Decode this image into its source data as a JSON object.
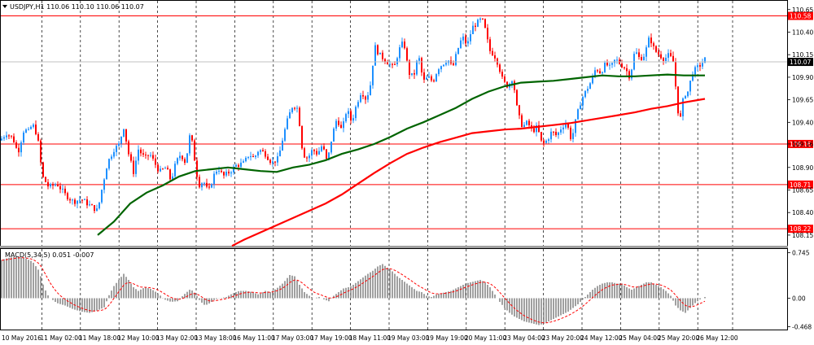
{
  "chart_data": [
    {
      "type": "candlestick",
      "symbol_info": "USDJPY,H1 110.06 110.10 110.06 110.07",
      "y_range": [
        108.05,
        110.72
      ],
      "y_ticks": [
        "110.65",
        "110.40",
        "110.15",
        "109.90",
        "109.65",
        "109.40",
        "109.16",
        "108.90",
        "108.65",
        "108.40",
        "108.15"
      ],
      "horizontal_lines": [
        {
          "label": "110.58",
          "value": 110.58,
          "color": "#ff0000"
        },
        {
          "label": "109.16",
          "value": 109.16,
          "color": "#ff0000"
        },
        {
          "label": "108.71",
          "value": 108.71,
          "color": "#ff0000"
        },
        {
          "label": "108.22",
          "value": 108.22,
          "color": "#ff0000"
        }
      ],
      "current_price": {
        "label": "110.07",
        "value": 110.07
      },
      "bull_color": "#1e90ff",
      "bear_color": "#ff0000",
      "ma_fast_color": "#006400",
      "ma_slow_color": "#ff0000",
      "close_path": [
        [
          0,
          109.2
        ],
        [
          8,
          109.28
        ],
        [
          16,
          109.22
        ],
        [
          22,
          109.06
        ],
        [
          30,
          109.34
        ],
        [
          34,
          109.28
        ],
        [
          40,
          109.38
        ],
        [
          46,
          109.25
        ],
        [
          52,
          108.8
        ],
        [
          60,
          108.68
        ],
        [
          70,
          108.72
        ],
        [
          80,
          108.6
        ],
        [
          90,
          108.52
        ],
        [
          100,
          108.55
        ],
        [
          110,
          108.48
        ],
        [
          120,
          108.42
        ],
        [
          126,
          108.7
        ],
        [
          132,
          108.95
        ],
        [
          140,
          109.1
        ],
        [
          146,
          109.15
        ],
        [
          152,
          109.35
        ],
        [
          158,
          109.05
        ],
        [
          164,
          108.85
        ],
        [
          170,
          109.1
        ],
        [
          178,
          109.0
        ],
        [
          184,
          109.05
        ],
        [
          190,
          108.95
        ],
        [
          196,
          108.85
        ],
        [
          204,
          108.9
        ],
        [
          210,
          108.75
        ],
        [
          216,
          108.95
        ],
        [
          222,
          109.05
        ],
        [
          228,
          108.95
        ],
        [
          234,
          109.3
        ],
        [
          238,
          109.05
        ],
        [
          244,
          108.7
        ],
        [
          250,
          108.75
        ],
        [
          256,
          108.62
        ],
        [
          262,
          108.8
        ],
        [
          268,
          108.9
        ],
        [
          274,
          108.8
        ],
        [
          282,
          108.85
        ],
        [
          290,
          108.92
        ],
        [
          300,
          108.95
        ],
        [
          306,
          109.05
        ],
        [
          312,
          109.0
        ],
        [
          318,
          109.1
        ],
        [
          326,
          109.05
        ],
        [
          334,
          108.95
        ],
        [
          342,
          109.0
        ],
        [
          348,
          109.25
        ],
        [
          354,
          109.45
        ],
        [
          360,
          109.6
        ],
        [
          366,
          109.55
        ],
        [
          372,
          109.05
        ],
        [
          378,
          109.0
        ],
        [
          384,
          109.1
        ],
        [
          390,
          109.05
        ],
        [
          396,
          109.15
        ],
        [
          402,
          108.95
        ],
        [
          408,
          109.25
        ],
        [
          414,
          109.45
        ],
        [
          420,
          109.3
        ],
        [
          426,
          109.55
        ],
        [
          432,
          109.4
        ],
        [
          438,
          109.6
        ],
        [
          444,
          109.75
        ],
        [
          450,
          109.65
        ],
        [
          456,
          109.85
        ],
        [
          460,
          110.25
        ],
        [
          466,
          110.15
        ],
        [
          472,
          110.1
        ],
        [
          478,
          110.05
        ],
        [
          484,
          110.0
        ],
        [
          490,
          110.2
        ],
        [
          496,
          110.3
        ],
        [
          502,
          109.95
        ],
        [
          508,
          109.9
        ],
        [
          514,
          110.15
        ],
        [
          520,
          109.85
        ],
        [
          526,
          109.9
        ],
        [
          532,
          109.85
        ],
        [
          538,
          110.0
        ],
        [
          544,
          110.05
        ],
        [
          550,
          110.1
        ],
        [
          556,
          110.0
        ],
        [
          562,
          110.2
        ],
        [
          568,
          110.35
        ],
        [
          574,
          110.25
        ],
        [
          580,
          110.45
        ],
        [
          586,
          110.5
        ],
        [
          592,
          110.55
        ],
        [
          597,
          110.4
        ],
        [
          601,
          110.2
        ],
        [
          607,
          110.15
        ],
        [
          612,
          110.05
        ],
        [
          618,
          109.85
        ],
        [
          624,
          109.8
        ],
        [
          630,
          109.9
        ],
        [
          636,
          109.5
        ],
        [
          642,
          109.35
        ],
        [
          648,
          109.4
        ],
        [
          654,
          109.3
        ],
        [
          660,
          109.35
        ],
        [
          666,
          109.15
        ],
        [
          672,
          109.2
        ],
        [
          678,
          109.3
        ],
        [
          684,
          109.25
        ],
        [
          690,
          109.35
        ],
        [
          696,
          109.4
        ],
        [
          702,
          109.2
        ],
        [
          708,
          109.45
        ],
        [
          714,
          109.65
        ],
        [
          720,
          109.75
        ],
        [
          726,
          109.85
        ],
        [
          732,
          110.0
        ],
        [
          738,
          109.95
        ],
        [
          744,
          110.05
        ],
        [
          750,
          110.0
        ],
        [
          756,
          110.1
        ],
        [
          762,
          110.05
        ],
        [
          768,
          110.0
        ],
        [
          774,
          109.9
        ],
        [
          780,
          110.2
        ],
        [
          786,
          110.1
        ],
        [
          792,
          110.15
        ],
        [
          798,
          110.35
        ],
        [
          804,
          110.2
        ],
        [
          810,
          110.15
        ],
        [
          816,
          110.1
        ],
        [
          822,
          110.15
        ],
        [
          828,
          110.05
        ],
        [
          832,
          109.55
        ],
        [
          836,
          109.45
        ],
        [
          840,
          109.7
        ],
        [
          846,
          109.75
        ],
        [
          850,
          109.95
        ],
        [
          856,
          110.0
        ],
        [
          862,
          110.05
        ],
        [
          866,
          110.1
        ]
      ],
      "ma_fast": [
        [
          120,
          108.15
        ],
        [
          140,
          108.3
        ],
        [
          160,
          108.5
        ],
        [
          180,
          108.62
        ],
        [
          200,
          108.7
        ],
        [
          220,
          108.8
        ],
        [
          240,
          108.86
        ],
        [
          260,
          108.88
        ],
        [
          280,
          108.9
        ],
        [
          300,
          108.88
        ],
        [
          320,
          108.86
        ],
        [
          340,
          108.85
        ],
        [
          360,
          108.9
        ],
        [
          380,
          108.93
        ],
        [
          400,
          108.98
        ],
        [
          420,
          109.05
        ],
        [
          440,
          109.1
        ],
        [
          460,
          109.16
        ],
        [
          480,
          109.24
        ],
        [
          500,
          109.33
        ],
        [
          520,
          109.4
        ],
        [
          540,
          109.48
        ],
        [
          560,
          109.56
        ],
        [
          580,
          109.66
        ],
        [
          600,
          109.74
        ],
        [
          620,
          109.8
        ],
        [
          640,
          109.84
        ],
        [
          660,
          109.85
        ],
        [
          680,
          109.86
        ],
        [
          700,
          109.88
        ],
        [
          720,
          109.9
        ],
        [
          740,
          109.92
        ],
        [
          760,
          109.91
        ],
        [
          780,
          109.91
        ],
        [
          800,
          109.92
        ],
        [
          820,
          109.93
        ],
        [
          840,
          109.92
        ],
        [
          866,
          109.92
        ]
      ],
      "ma_slow": [
        [
          285,
          108.03
        ],
        [
          300,
          108.1
        ],
        [
          320,
          108.18
        ],
        [
          340,
          108.26
        ],
        [
          360,
          108.34
        ],
        [
          380,
          108.42
        ],
        [
          400,
          108.5
        ],
        [
          420,
          108.6
        ],
        [
          440,
          108.72
        ],
        [
          460,
          108.84
        ],
        [
          480,
          108.95
        ],
        [
          500,
          109.05
        ],
        [
          520,
          109.12
        ],
        [
          540,
          109.18
        ],
        [
          560,
          109.23
        ],
        [
          580,
          109.28
        ],
        [
          600,
          109.3
        ],
        [
          620,
          109.32
        ],
        [
          640,
          109.33
        ],
        [
          660,
          109.35
        ],
        [
          680,
          109.37
        ],
        [
          700,
          109.39
        ],
        [
          720,
          109.42
        ],
        [
          740,
          109.45
        ],
        [
          760,
          109.48
        ],
        [
          780,
          109.51
        ],
        [
          800,
          109.55
        ],
        [
          820,
          109.58
        ],
        [
          840,
          109.62
        ],
        [
          866,
          109.66
        ]
      ]
    },
    {
      "type": "bar",
      "indicator_label": "MACD(5,34,5) 0.051 -0.007",
      "y_range": [
        -0.5,
        0.78
      ],
      "y_ticks": [
        "0.745",
        "0.00",
        "-0.468"
      ],
      "bar_color": "#808080",
      "signal_color": "#ff0000",
      "macd_path": [
        [
          0,
          0.62
        ],
        [
          10,
          0.66
        ],
        [
          20,
          0.68
        ],
        [
          30,
          0.66
        ],
        [
          40,
          0.6
        ],
        [
          48,
          0.45
        ],
        [
          54,
          0.18
        ],
        [
          60,
          0.02
        ],
        [
          70,
          -0.08
        ],
        [
          80,
          -0.12
        ],
        [
          90,
          -0.18
        ],
        [
          100,
          -0.22
        ],
        [
          110,
          -0.24
        ],
        [
          120,
          -0.2
        ],
        [
          128,
          -0.15
        ],
        [
          134,
          0.05
        ],
        [
          140,
          0.2
        ],
        [
          146,
          0.3
        ],
        [
          152,
          0.4
        ],
        [
          158,
          0.3
        ],
        [
          164,
          0.18
        ],
        [
          170,
          0.12
        ],
        [
          178,
          0.18
        ],
        [
          186,
          0.15
        ],
        [
          194,
          0.08
        ],
        [
          202,
          -0.02
        ],
        [
          210,
          -0.06
        ],
        [
          218,
          -0.05
        ],
        [
          226,
          0.06
        ],
        [
          234,
          0.15
        ],
        [
          240,
          0.08
        ],
        [
          246,
          -0.05
        ],
        [
          252,
          -0.12
        ],
        [
          258,
          -0.08
        ],
        [
          264,
          -0.02
        ],
        [
          270,
          0.0
        ],
        [
          278,
          0.02
        ],
        [
          286,
          0.08
        ],
        [
          294,
          0.12
        ],
        [
          302,
          0.12
        ],
        [
          310,
          0.1
        ],
        [
          318,
          0.06
        ],
        [
          326,
          0.12
        ],
        [
          332,
          0.1
        ],
        [
          340,
          0.16
        ],
        [
          348,
          0.25
        ],
        [
          356,
          0.38
        ],
        [
          362,
          0.36
        ],
        [
          368,
          0.22
        ],
        [
          374,
          0.1
        ],
        [
          380,
          0.04
        ],
        [
          386,
          0.0
        ],
        [
          392,
          0.02
        ],
        [
          398,
          -0.02
        ],
        [
          404,
          -0.05
        ],
        [
          410,
          0.04
        ],
        [
          416,
          0.1
        ],
        [
          422,
          0.16
        ],
        [
          428,
          0.18
        ],
        [
          434,
          0.22
        ],
        [
          440,
          0.28
        ],
        [
          446,
          0.34
        ],
        [
          452,
          0.4
        ],
        [
          458,
          0.45
        ],
        [
          464,
          0.52
        ],
        [
          470,
          0.56
        ],
        [
          476,
          0.5
        ],
        [
          482,
          0.44
        ],
        [
          488,
          0.36
        ],
        [
          494,
          0.3
        ],
        [
          500,
          0.24
        ],
        [
          506,
          0.18
        ],
        [
          512,
          0.12
        ],
        [
          518,
          0.1
        ],
        [
          524,
          0.04
        ],
        [
          530,
          0.02
        ],
        [
          536,
          0.06
        ],
        [
          542,
          0.08
        ],
        [
          548,
          0.1
        ],
        [
          554,
          0.12
        ],
        [
          560,
          0.16
        ],
        [
          566,
          0.2
        ],
        [
          572,
          0.24
        ],
        [
          578,
          0.26
        ],
        [
          584,
          0.28
        ],
        [
          590,
          0.3
        ],
        [
          596,
          0.26
        ],
        [
          602,
          0.18
        ],
        [
          608,
          0.06
        ],
        [
          614,
          -0.06
        ],
        [
          620,
          -0.16
        ],
        [
          626,
          -0.24
        ],
        [
          632,
          -0.3
        ],
        [
          638,
          -0.34
        ],
        [
          644,
          -0.38
        ],
        [
          650,
          -0.4
        ],
        [
          656,
          -0.42
        ],
        [
          662,
          -0.44
        ],
        [
          668,
          -0.42
        ],
        [
          674,
          -0.38
        ],
        [
          680,
          -0.34
        ],
        [
          686,
          -0.3
        ],
        [
          692,
          -0.26
        ],
        [
          698,
          -0.22
        ],
        [
          704,
          -0.16
        ],
        [
          710,
          -0.1
        ],
        [
          716,
          -0.02
        ],
        [
          722,
          0.06
        ],
        [
          728,
          0.14
        ],
        [
          734,
          0.2
        ],
        [
          740,
          0.24
        ],
        [
          746,
          0.26
        ],
        [
          752,
          0.26
        ],
        [
          758,
          0.24
        ],
        [
          764,
          0.24
        ],
        [
          770,
          0.18
        ],
        [
          776,
          0.14
        ],
        [
          782,
          0.18
        ],
        [
          788,
          0.22
        ],
        [
          794,
          0.26
        ],
        [
          800,
          0.26
        ],
        [
          806,
          0.22
        ],
        [
          812,
          0.18
        ],
        [
          818,
          0.12
        ],
        [
          824,
          0.04
        ],
        [
          830,
          -0.12
        ],
        [
          836,
          -0.2
        ],
        [
          842,
          -0.24
        ],
        [
          848,
          -0.16
        ],
        [
          854,
          -0.08
        ],
        [
          860,
          -0.02
        ],
        [
          866,
          0.02
        ]
      ]
    }
  ],
  "time_axis": {
    "labels": [
      "10 May 2016",
      "11 May 02:00",
      "11 May 18:00",
      "12 May 10:00",
      "13 May 02:00",
      "13 May 18:00",
      "16 May 11:00",
      "17 May 03:00",
      "17 May 19:00",
      "18 May 11:00",
      "19 May 03:00",
      "19 May 19:00",
      "20 May 11:00",
      "23 May 04:00",
      "23 May 20:00",
      "24 May 12:00",
      "25 May 04:00",
      "25 May 20:00",
      "26 May 12:00"
    ]
  }
}
